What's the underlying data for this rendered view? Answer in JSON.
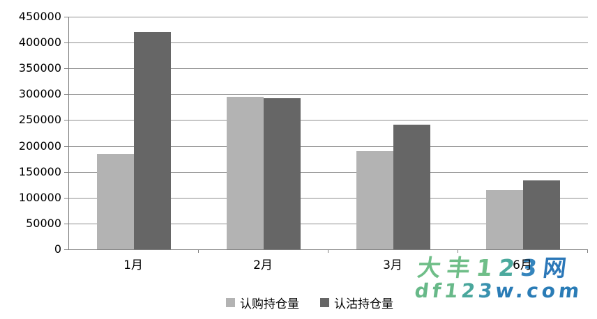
{
  "chart_data": {
    "type": "bar",
    "title": "",
    "xlabel": "",
    "ylabel": "",
    "categories": [
      "1月",
      "2月",
      "3月",
      "6月"
    ],
    "series": [
      {
        "name": "认购持仓量",
        "color": "#b3b3b3",
        "values": [
          185000,
          295000,
          190000,
          115000
        ]
      },
      {
        "name": "认沽持仓量",
        "color": "#666666",
        "values": [
          420000,
          292000,
          241000,
          134000
        ]
      }
    ],
    "ylim": [
      0,
      450000
    ],
    "ytick_step": 50000,
    "yticks": [
      0,
      50000,
      100000,
      150000,
      200000,
      250000,
      300000,
      350000,
      400000,
      450000
    ],
    "ytick_labels": [
      "0",
      "50000",
      "100000",
      "150000",
      "200000",
      "250000",
      "300000",
      "350000",
      "400000",
      "450000"
    ],
    "grid": true,
    "legend_position": "bottom-center",
    "axis_color": "#7f7f7f",
    "gridline_color": "#8e8e8e"
  },
  "watermark": {
    "line1": {
      "text": "大丰123网",
      "char_colors": [
        "#6fbe88",
        "#6fbe88",
        "#6fbe88",
        "#4ba99d",
        "#3585bd",
        "#2b77b8"
      ]
    },
    "line2": {
      "text": "df123w.com",
      "char_colors": [
        "#68b989",
        "#68b989",
        "#68b989",
        "#4aa79c",
        "#3a92af",
        "#2a7cb6",
        "#2a7cb6",
        "#2a7cb6",
        "#2a7cb6",
        "#2a7cb6"
      ]
    }
  }
}
